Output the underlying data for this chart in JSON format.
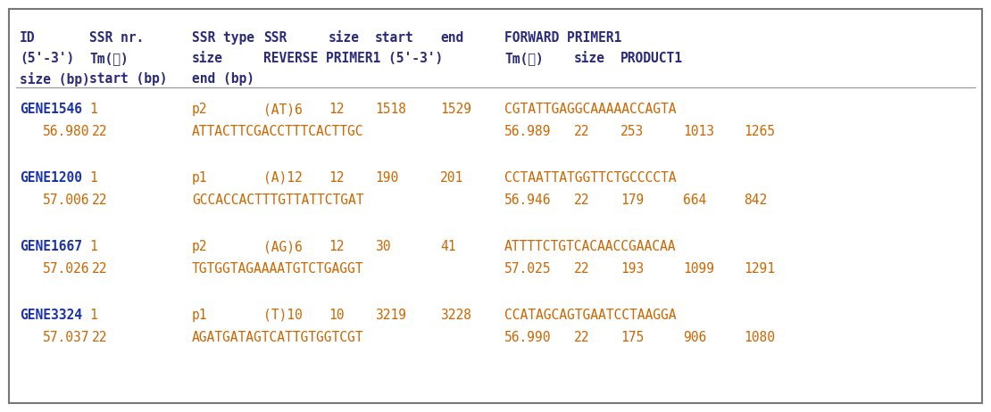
{
  "background_color": "#ffffff",
  "border_color": "#777777",
  "header_color": "#2a2a7a",
  "gene_color": "#1a33aa",
  "data_color": "#cc6600",
  "rows": [
    {
      "gene": "GENE1546",
      "row1_nr": "1",
      "row1_type": "p2",
      "row1_ssr": "(AT)6",
      "row1_ssrsize": "12",
      "row1_start": "1518",
      "row1_end": "1529",
      "row1_fwd": "CGTATTGAGGCAAAAACCAGTA",
      "row2_tm1": "56.980",
      "row2_sz1": "22",
      "row2_rev": "ATTACTTCGACCTTTCACTTGC",
      "row2_tm2": "56.989",
      "row2_sz2": "22",
      "row2_pstart": "253",
      "row2_pend": "1013",
      "row2_psize": "1265"
    },
    {
      "gene": "GENE1200",
      "row1_nr": "1",
      "row1_type": "p1",
      "row1_ssr": "(A)12",
      "row1_ssrsize": "12",
      "row1_start": "190",
      "row1_end": "201",
      "row1_fwd": "CCTAATTATGGTTCTGCCCCTA",
      "row2_tm1": "57.006",
      "row2_sz1": "22",
      "row2_rev": "GCCACCACTTTGTTATTCTGAT",
      "row2_tm2": "56.946",
      "row2_sz2": "22",
      "row2_pstart": "179",
      "row2_pend": "664",
      "row2_psize": "842"
    },
    {
      "gene": "GENE1667",
      "row1_nr": "1",
      "row1_type": "p2",
      "row1_ssr": "(AG)6",
      "row1_ssrsize": "12",
      "row1_start": "30",
      "row1_end": "41",
      "row1_fwd": "ATTTTCTGTCACAACCGAACAA",
      "row2_tm1": "57.026",
      "row2_sz1": "22",
      "row2_rev": "TGTGGTAGAAAATGTCTGAGGT",
      "row2_tm2": "57.025",
      "row2_sz2": "22",
      "row2_pstart": "193",
      "row2_pend": "1099",
      "row2_psize": "1291"
    },
    {
      "gene": "GENE3324",
      "row1_nr": "1",
      "row1_type": "p1",
      "row1_ssr": "(T)10",
      "row1_ssrsize": "10",
      "row1_start": "3219",
      "row1_end": "3228",
      "row1_fwd": "CCATAGCAGTGAATCCTAAGGA",
      "row2_tm1": "57.037",
      "row2_sz1": "22",
      "row2_rev": "AGATGATAGTCATTGTGGTCGT",
      "row2_tm2": "56.990",
      "row2_sz2": "22",
      "row2_pstart": "175",
      "row2_pend": "906",
      "row2_psize": "1080"
    }
  ],
  "fig_width": 11.1,
  "fig_height": 4.62,
  "dpi": 100,
  "font_size": 10.5,
  "header_font_size": 10.5
}
